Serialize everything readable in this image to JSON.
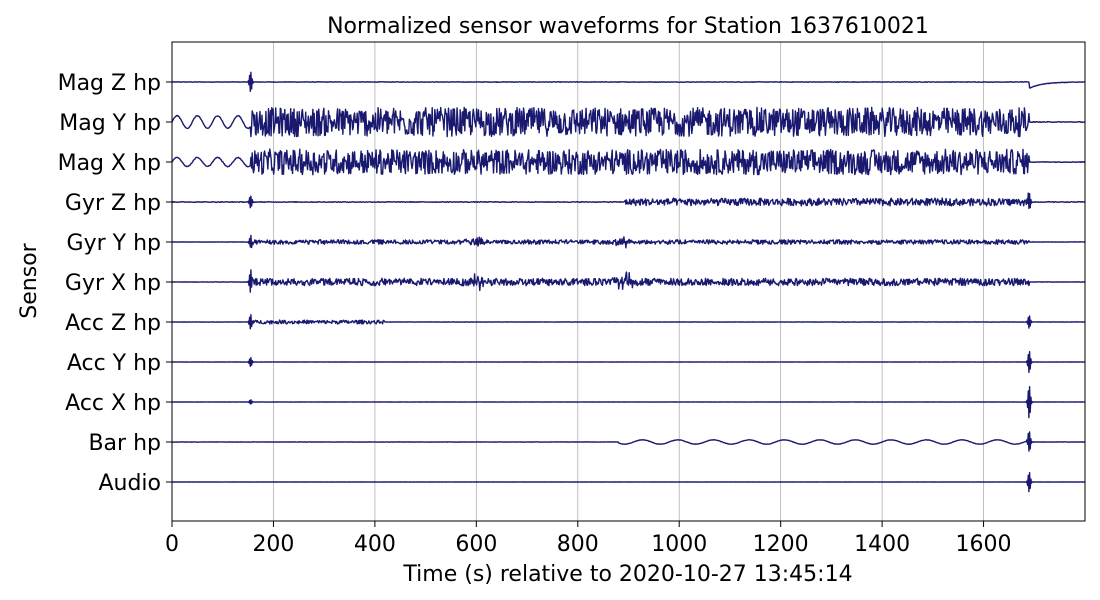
{
  "chart_data": {
    "type": "line",
    "title": "Normalized sensor waveforms for Station 1637610021",
    "xlabel": "Time (s) relative to 2020-10-27 13:45:14",
    "ylabel": "Sensor",
    "xlim": [
      0,
      1800
    ],
    "x_ticks": [
      0,
      200,
      400,
      600,
      800,
      1000,
      1200,
      1400,
      1600
    ],
    "grid": "vertical",
    "line_color": "#191970",
    "categories": [
      "Mag Z hp",
      "Mag Y hp",
      "Mag X hp",
      "Gyr Z hp",
      "Gyr Y hp",
      "Gyr X hp",
      "Acc Z hp",
      "Acc Y hp",
      "Acc X hp",
      "Bar hp",
      "Audio"
    ],
    "series": [
      {
        "name": "Mag Z hp",
        "events": [
          {
            "type": "spike",
            "x": 155,
            "amp": 0.55
          },
          {
            "type": "step",
            "x": 1690,
            "amp": -0.35
          }
        ],
        "noise": 0.015
      },
      {
        "name": "Mag Y hp",
        "events": [
          {
            "type": "sine",
            "x0": 0,
            "x1": 155,
            "amp": 0.35,
            "period": 40
          },
          {
            "type": "burst",
            "x0": 155,
            "x1": 1690,
            "amp": 0.8
          }
        ],
        "noise": 0.02
      },
      {
        "name": "Mag X hp",
        "events": [
          {
            "type": "sine",
            "x0": 0,
            "x1": 155,
            "amp": 0.25,
            "period": 40
          },
          {
            "type": "burst",
            "x0": 155,
            "x1": 1690,
            "amp": 0.7
          }
        ],
        "noise": 0.02
      },
      {
        "name": "Gyr Z hp",
        "events": [
          {
            "type": "spike",
            "x": 155,
            "amp": 0.35
          },
          {
            "type": "burst",
            "x0": 890,
            "x1": 1690,
            "amp": 0.2
          },
          {
            "type": "spike",
            "x": 1690,
            "amp": 0.5
          }
        ],
        "noise": 0.02
      },
      {
        "name": "Gyr Y hp",
        "events": [
          {
            "type": "burst",
            "x0": 155,
            "x1": 1690,
            "amp": 0.12
          },
          {
            "type": "blob",
            "x": 600,
            "amp": 0.2
          },
          {
            "type": "blob",
            "x": 895,
            "amp": 0.25
          },
          {
            "type": "spike",
            "x": 155,
            "amp": 0.3
          }
        ],
        "noise": 0.01
      },
      {
        "name": "Gyr X hp",
        "events": [
          {
            "type": "burst",
            "x0": 155,
            "x1": 1690,
            "amp": 0.2
          },
          {
            "type": "blob",
            "x": 600,
            "amp": 0.35
          },
          {
            "type": "blob",
            "x": 895,
            "amp": 0.4
          },
          {
            "type": "spike",
            "x": 155,
            "amp": 0.6
          }
        ],
        "noise": 0.01
      },
      {
        "name": "Acc Z hp",
        "events": [
          {
            "type": "spike",
            "x": 155,
            "amp": 0.4
          },
          {
            "type": "burst",
            "x0": 155,
            "x1": 420,
            "amp": 0.1
          },
          {
            "type": "spike",
            "x": 1690,
            "amp": 0.35
          }
        ],
        "noise": 0.01
      },
      {
        "name": "Acc Y hp",
        "events": [
          {
            "type": "spike",
            "x": 155,
            "amp": 0.25
          },
          {
            "type": "spike",
            "x": 1690,
            "amp": 0.6
          }
        ],
        "noise": 0.008
      },
      {
        "name": "Acc X hp",
        "events": [
          {
            "type": "spike",
            "x": 155,
            "amp": 0.12
          },
          {
            "type": "spike",
            "x": 1690,
            "amp": 0.9
          }
        ],
        "noise": 0.008
      },
      {
        "name": "Bar hp",
        "events": [
          {
            "type": "wave",
            "x0": 880,
            "x1": 1690,
            "amp": 0.12
          },
          {
            "type": "spike",
            "x": 1690,
            "amp": 0.6
          }
        ],
        "noise": 0.01
      },
      {
        "name": "Audio",
        "events": [
          {
            "type": "spike",
            "x": 1690,
            "amp": 0.55
          }
        ],
        "noise": 0.005
      }
    ]
  }
}
